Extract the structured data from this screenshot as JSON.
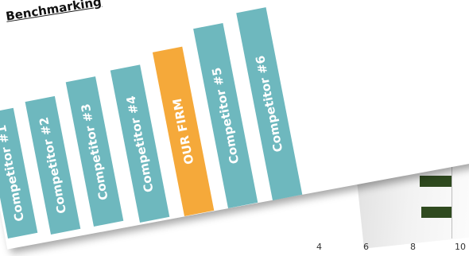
{
  "slide": {
    "title": "Benchmarking"
  },
  "bars": [
    {
      "label": "Competitor #1",
      "color": "#6eb8be"
    },
    {
      "label": "Competitor #2",
      "color": "#6eb8be"
    },
    {
      "label": "Competitor #3",
      "color": "#6eb8be"
    },
    {
      "label": "Competitor #4",
      "color": "#6eb8be"
    },
    {
      "label": "OUR FIRM",
      "color": "#f5a93a"
    },
    {
      "label": "Competitor #5",
      "color": "#6eb8be"
    },
    {
      "label": "Competitor #6",
      "color": "#6eb8be"
    }
  ],
  "background_chart": {
    "ticks": [
      "4",
      "6",
      "8",
      "10"
    ]
  }
}
